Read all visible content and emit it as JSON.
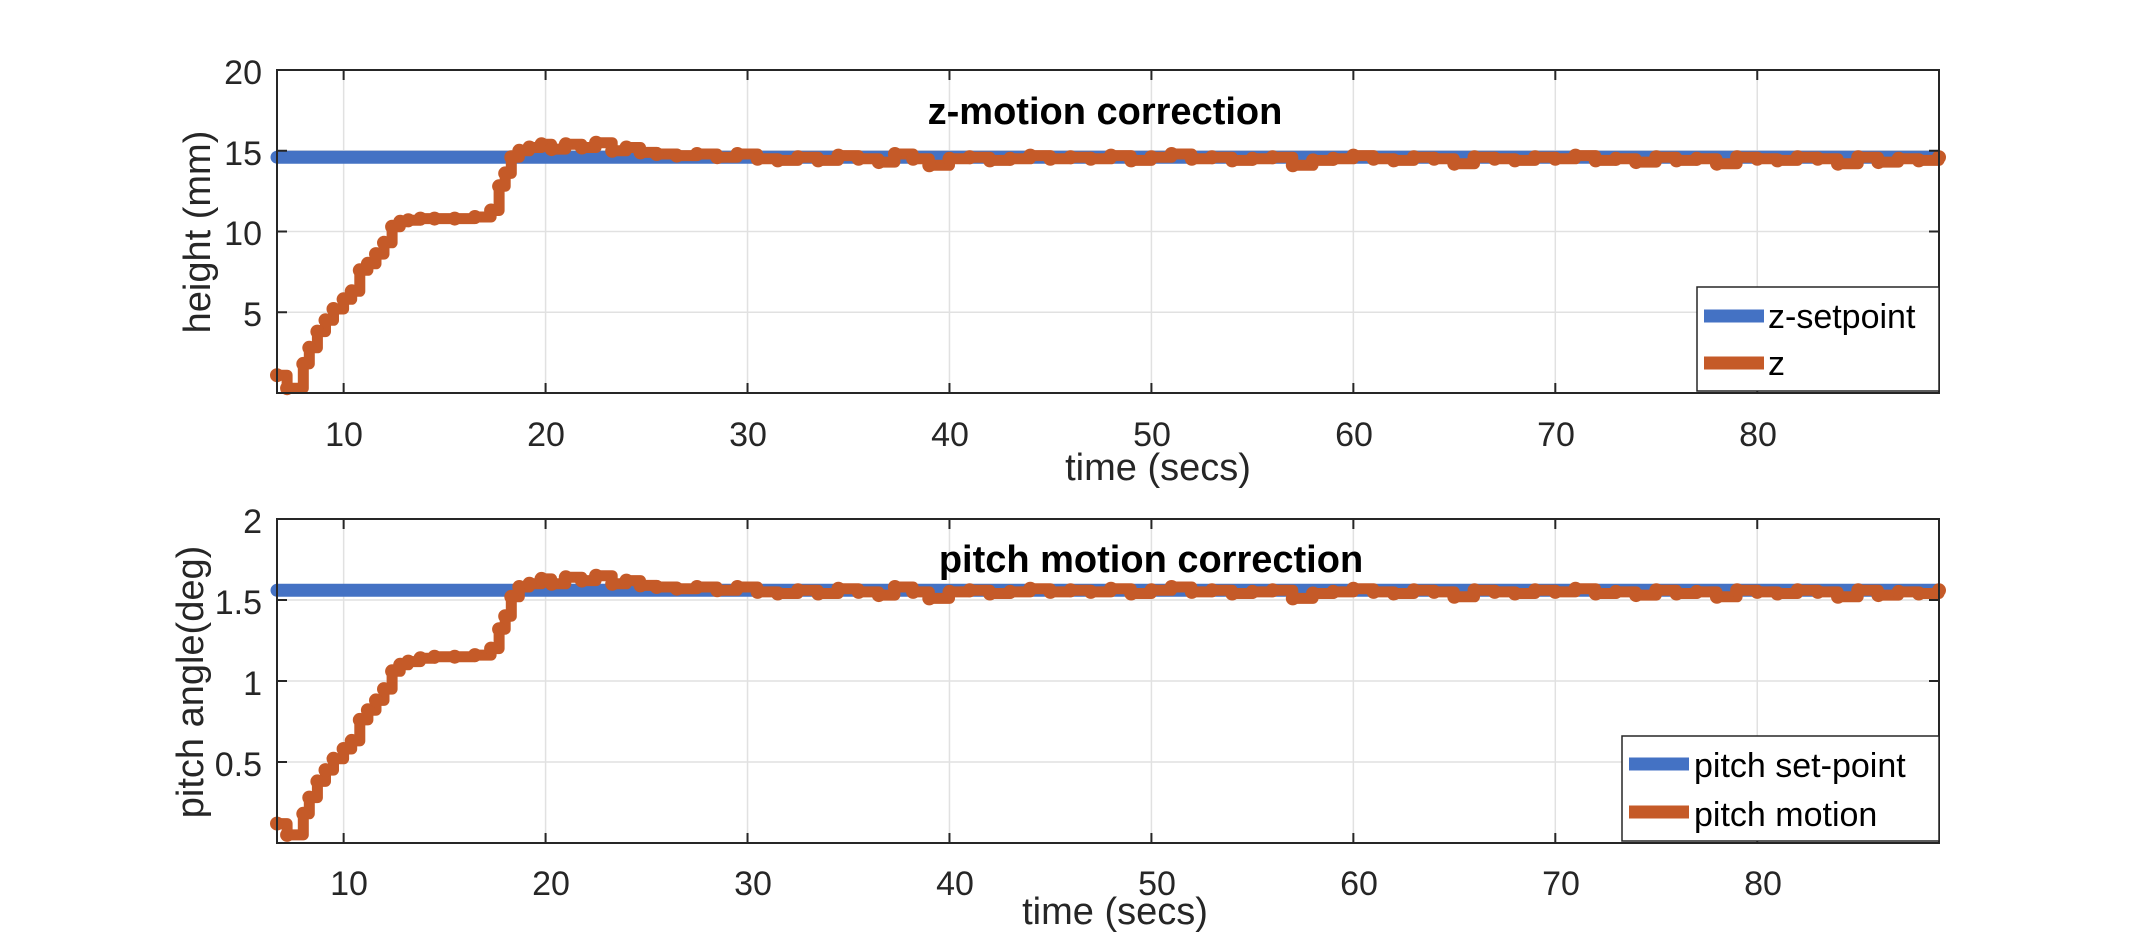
{
  "figure": {
    "background": "#ffffff",
    "grid_color": "#e1e1e1",
    "axes_color": "#262626"
  },
  "chart_data": [
    {
      "type": "line",
      "title": "z-motion correction",
      "xlabel": "time (secs)",
      "ylabel": "height (mm)",
      "xlim": [
        6.7,
        89
      ],
      "ylim": [
        0,
        20
      ],
      "xticks": [
        10,
        20,
        30,
        40,
        50,
        60,
        70,
        80
      ],
      "yticks": [
        5,
        10,
        15,
        20
      ],
      "grid": true,
      "legend_position": "bottom-right",
      "series": [
        {
          "name": "z-setpoint",
          "color": "#4472C4",
          "style": "flat",
          "x": [
            6.7,
            89
          ],
          "y": [
            14.6,
            14.6
          ]
        },
        {
          "name": "z",
          "color": "#C55A28",
          "style": "step",
          "x": [
            6.7,
            7.2,
            8.0,
            8.3,
            8.7,
            9.1,
            9.5,
            10.0,
            10.4,
            10.8,
            11.2,
            11.6,
            12.0,
            12.4,
            12.8,
            13.2,
            13.8,
            14.5,
            15.5,
            16.5,
            17.3,
            17.7,
            18.0,
            18.3,
            18.7,
            19.2,
            19.8,
            20.3,
            21.0,
            21.8,
            22.5,
            23.3,
            24.0,
            24.7,
            25.5,
            26.5,
            27.5,
            28.5,
            29.5,
            30.5,
            31.5,
            32.5,
            33.5,
            34.5,
            35.5,
            36.5,
            37.3,
            38.2,
            39.0,
            40.0,
            41.0,
            42.0,
            43.0,
            44.0,
            45.0,
            46.0,
            47.0,
            48.0,
            49.0,
            50.0,
            51.0,
            52.0,
            53.0,
            54.0,
            55.0,
            56.0,
            57.0,
            58.0,
            59.0,
            60.0,
            61.0,
            62.0,
            63.0,
            64.0,
            65.0,
            66.0,
            67.0,
            68.0,
            69.0,
            70.0,
            71.0,
            72.0,
            73.0,
            74.0,
            75.0,
            76.0,
            77.0,
            78.0,
            79.0,
            80.0,
            81.0,
            82.0,
            83.0,
            84.0,
            85.0,
            86.0,
            87.0,
            88.0,
            89.0
          ],
          "y": [
            1.1,
            0.3,
            1.8,
            2.8,
            3.8,
            4.5,
            5.2,
            5.8,
            6.3,
            7.6,
            8.0,
            8.6,
            9.3,
            10.3,
            10.6,
            10.7,
            10.8,
            10.8,
            10.8,
            10.9,
            11.3,
            12.8,
            13.6,
            14.6,
            15.0,
            15.2,
            15.4,
            15.1,
            15.4,
            15.2,
            15.5,
            15.0,
            15.2,
            14.9,
            14.8,
            14.7,
            14.8,
            14.6,
            14.8,
            14.5,
            14.4,
            14.6,
            14.4,
            14.7,
            14.5,
            14.3,
            14.8,
            14.5,
            14.1,
            14.5,
            14.6,
            14.4,
            14.5,
            14.7,
            14.5,
            14.6,
            14.5,
            14.7,
            14.4,
            14.6,
            14.8,
            14.5,
            14.6,
            14.4,
            14.5,
            14.6,
            14.1,
            14.4,
            14.5,
            14.7,
            14.5,
            14.4,
            14.6,
            14.5,
            14.2,
            14.6,
            14.5,
            14.4,
            14.6,
            14.5,
            14.7,
            14.4,
            14.5,
            14.3,
            14.6,
            14.4,
            14.5,
            14.2,
            14.6,
            14.5,
            14.4,
            14.6,
            14.5,
            14.2,
            14.6,
            14.3,
            14.5,
            14.4,
            14.6
          ]
        }
      ]
    },
    {
      "type": "line",
      "title": "pitch motion correction",
      "xlabel": "time (secs)",
      "ylabel": "pitch angle(deg)",
      "xlim": [
        6.7,
        89
      ],
      "ylim": [
        0,
        2
      ],
      "xticks": [
        10,
        20,
        30,
        40,
        50,
        60,
        70,
        80
      ],
      "yticks": [
        0.5,
        1,
        1.5,
        2
      ],
      "ytick_labels": [
        "0.5",
        "1",
        "1.5",
        "2"
      ],
      "grid": true,
      "legend_position": "bottom-right",
      "series": [
        {
          "name": "pitch set-point",
          "color": "#4472C4",
          "style": "flat",
          "x": [
            6.7,
            89
          ],
          "y": [
            1.56,
            1.56
          ]
        },
        {
          "name": "pitch motion",
          "color": "#C55A28",
          "style": "step",
          "x": [
            6.7,
            7.2,
            8.0,
            8.3,
            8.7,
            9.1,
            9.5,
            10.0,
            10.4,
            10.8,
            11.2,
            11.6,
            12.0,
            12.4,
            12.8,
            13.2,
            13.8,
            14.5,
            15.5,
            16.5,
            17.3,
            17.7,
            18.0,
            18.3,
            18.7,
            19.2,
            19.8,
            20.3,
            21.0,
            21.8,
            22.5,
            23.3,
            24.0,
            24.7,
            25.5,
            26.5,
            27.5,
            28.5,
            29.5,
            30.5,
            31.5,
            32.5,
            33.5,
            34.5,
            35.5,
            36.5,
            37.3,
            38.2,
            39.0,
            40.0,
            41.0,
            42.0,
            43.0,
            44.0,
            45.0,
            46.0,
            47.0,
            48.0,
            49.0,
            50.0,
            51.0,
            52.0,
            53.0,
            54.0,
            55.0,
            56.0,
            57.0,
            58.0,
            59.0,
            60.0,
            61.0,
            62.0,
            63.0,
            64.0,
            65.0,
            66.0,
            67.0,
            68.0,
            69.0,
            70.0,
            71.0,
            72.0,
            73.0,
            74.0,
            75.0,
            76.0,
            77.0,
            78.0,
            79.0,
            80.0,
            81.0,
            82.0,
            83.0,
            84.0,
            85.0,
            86.0,
            87.0,
            88.0,
            89.0
          ],
          "y": [
            0.12,
            0.05,
            0.18,
            0.28,
            0.38,
            0.45,
            0.52,
            0.58,
            0.63,
            0.76,
            0.82,
            0.88,
            0.95,
            1.06,
            1.1,
            1.12,
            1.14,
            1.15,
            1.15,
            1.16,
            1.2,
            1.32,
            1.4,
            1.52,
            1.58,
            1.6,
            1.63,
            1.6,
            1.64,
            1.62,
            1.65,
            1.6,
            1.62,
            1.59,
            1.58,
            1.57,
            1.58,
            1.56,
            1.58,
            1.55,
            1.54,
            1.56,
            1.54,
            1.57,
            1.55,
            1.53,
            1.58,
            1.55,
            1.51,
            1.55,
            1.56,
            1.54,
            1.55,
            1.57,
            1.55,
            1.56,
            1.55,
            1.57,
            1.54,
            1.56,
            1.58,
            1.55,
            1.56,
            1.54,
            1.55,
            1.56,
            1.51,
            1.54,
            1.55,
            1.57,
            1.55,
            1.54,
            1.56,
            1.55,
            1.52,
            1.56,
            1.55,
            1.54,
            1.56,
            1.55,
            1.57,
            1.54,
            1.55,
            1.53,
            1.56,
            1.54,
            1.55,
            1.52,
            1.56,
            1.55,
            1.54,
            1.56,
            1.55,
            1.52,
            1.56,
            1.53,
            1.55,
            1.54,
            1.56
          ]
        }
      ]
    }
  ]
}
